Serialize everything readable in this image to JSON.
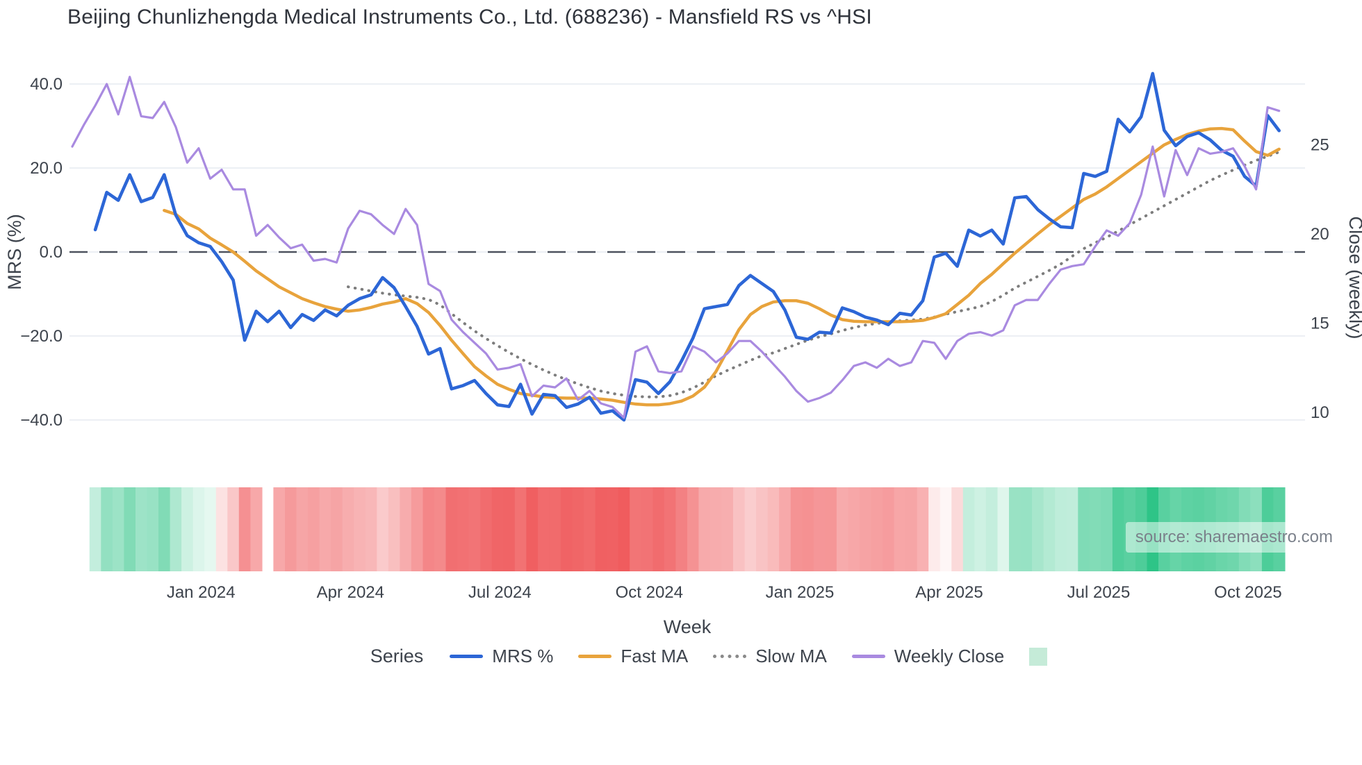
{
  "chart": {
    "title": "Beijing Chunlizhengda Medical Instruments Co., Ltd. (688236) - Mansfield RS vs ^HSI"
  },
  "watermark": "source: sharemaestro.com",
  "legend": {
    "title": "Series",
    "items": [
      {
        "id": "mrs",
        "label": "MRS %",
        "color": "#2c66d6",
        "style": "solid"
      },
      {
        "id": "fast-ma",
        "label": "Fast MA",
        "color": "#e8a33c",
        "style": "solid"
      },
      {
        "id": "slow-ma",
        "label": "Slow MA",
        "color": "#8a8a8a",
        "style": "dotted"
      },
      {
        "id": "weekly-close",
        "label": "Weekly Close",
        "color": "#a98ae0",
        "style": "solid"
      }
    ],
    "heatmap_swatch_color": "#c5ebd8"
  },
  "chart_data": {
    "type": "line",
    "title": "Beijing Chunlizhengda Medical Instruments Co., Ltd. (688236) - Mansfield RS vs ^HSI",
    "xlabel": "Week",
    "x_ticks": [
      {
        "label": "Jan 2024",
        "week": 11.2
      },
      {
        "label": "Apr 2024",
        "week": 24.2
      },
      {
        "label": "Jul 2024",
        "week": 37.2
      },
      {
        "label": "Oct 2024",
        "week": 50.2
      },
      {
        "label": "Jan 2025",
        "week": 63.3
      },
      {
        "label": "Apr 2025",
        "week": 76.3
      },
      {
        "label": "Jul 2025",
        "week": 89.3
      },
      {
        "label": "Oct 2025",
        "week": 102.3
      }
    ],
    "left_axis": {
      "label": "MRS (%)",
      "ticks": [
        {
          "label": "40.0",
          "value": 40
        },
        {
          "label": "20.0",
          "value": 20
        },
        {
          "label": "0.0",
          "value": 0
        },
        {
          "label": "−20.0",
          "value": -20
        },
        {
          "label": "−40.0",
          "value": -40
        }
      ]
    },
    "right_axis": {
      "label": "Close (weekly)",
      "ticks": [
        {
          "label": "25",
          "value": 25
        },
        {
          "label": "20",
          "value": 20
        },
        {
          "label": "15",
          "value": 15
        },
        {
          "label": "10",
          "value": 10
        }
      ]
    },
    "zero_line": {
      "axis": "left",
      "value": 0,
      "style": "dashed",
      "color": "#4d525e"
    },
    "weeks": 106,
    "series": [
      {
        "name": "MRS %",
        "axis": "left",
        "color": "#2c66d6",
        "width": 4.6,
        "dash": "none",
        "values": [
          null,
          null,
          5.3,
          14.2,
          12.3,
          18.4,
          12,
          13,
          18.4,
          8.8,
          3.9,
          2.2,
          1.3,
          -2.3,
          -6.7,
          -21,
          -14.1,
          -16.6,
          -14.1,
          -18,
          -14.9,
          -16.3,
          -13.8,
          -15.2,
          -12.7,
          -11.1,
          -10.2,
          -6.1,
          -8.5,
          -13,
          -17.7,
          -24.3,
          -23,
          -32.6,
          -31.8,
          -30.6,
          -33.7,
          -36.4,
          -36.8,
          -31.5,
          -38.6,
          -33.9,
          -34.2,
          -37,
          -36.2,
          -34.6,
          -38.4,
          -37.8,
          -40,
          -30.4,
          -31,
          -33.7,
          -30.9,
          -26,
          -20.5,
          -13.5,
          -13,
          -12.5,
          -8,
          -5.6,
          -7.5,
          -9.4,
          -13.8,
          -20.3,
          -20.8,
          -19.1,
          -19.3,
          -13.3,
          -14.2,
          -15.5,
          -16.2,
          -17.3,
          -14.6,
          -15,
          -11.6,
          -1.2,
          -0.3,
          -3.4,
          5.2,
          3.8,
          5.2,
          1.9,
          12.9,
          13.2,
          10.1,
          7.9,
          6,
          5.8,
          18.7,
          18,
          19.2,
          31.6,
          28.6,
          32.2,
          42.5,
          29,
          25.3,
          27.5,
          28.4,
          26.7,
          24.2,
          22.8,
          18,
          15.7,
          32.5,
          28.9
        ]
      },
      {
        "name": "Fast MA",
        "axis": "left",
        "color": "#e8a33c",
        "width": 4.4,
        "dash": "none",
        "values": [
          null,
          null,
          null,
          null,
          null,
          null,
          null,
          null,
          9.9,
          9,
          6.8,
          5.5,
          3.3,
          1.7,
          0,
          -2.2,
          -4.5,
          -6.4,
          -8.3,
          -9.7,
          -11.1,
          -12.1,
          -13,
          -13.6,
          -14.1,
          -13.8,
          -13.2,
          -12.4,
          -11.9,
          -11.1,
          -12.3,
          -14.4,
          -17.5,
          -21,
          -24.2,
          -27.3,
          -29.5,
          -31.5,
          -32.7,
          -33.7,
          -34.1,
          -34.5,
          -34.7,
          -34.8,
          -34.8,
          -34.8,
          -35,
          -35.3,
          -35.8,
          -36.2,
          -36.4,
          -36.4,
          -36.1,
          -35.5,
          -34.3,
          -32.2,
          -28.5,
          -23.5,
          -18.5,
          -14.9,
          -13,
          -11.9,
          -11.6,
          -11.6,
          -12.2,
          -13.5,
          -15,
          -16.1,
          -16.5,
          -16.6,
          -16.6,
          -16.6,
          -16.6,
          -16.5,
          -16.3,
          -15.6,
          -14.7,
          -12.5,
          -10.3,
          -7.5,
          -5.3,
          -2.8,
          -0.3,
          2,
          4.3,
          6.5,
          8.5,
          10.5,
          12.5,
          13.8,
          15.5,
          17.5,
          19.5,
          21.5,
          23.5,
          25.5,
          26.8,
          28,
          28.8,
          29.3,
          29.4,
          29.1,
          26.4,
          23.9,
          23,
          24.5
        ]
      },
      {
        "name": "Slow MA",
        "axis": "left",
        "color": "#7d7d7d",
        "width": 4,
        "dash": "dotted",
        "values": [
          null,
          null,
          null,
          null,
          null,
          null,
          null,
          null,
          null,
          null,
          null,
          null,
          null,
          null,
          null,
          null,
          null,
          null,
          null,
          null,
          null,
          null,
          null,
          null,
          -8.3,
          -8.8,
          -9.3,
          -9.8,
          -10.2,
          -10.5,
          -10.8,
          -11.3,
          -12.6,
          -14.7,
          -16.8,
          -18.8,
          -20.6,
          -22.3,
          -23.9,
          -25.4,
          -26.8,
          -28.1,
          -29.3,
          -30.4,
          -31.4,
          -32.3,
          -33.1,
          -33.7,
          -34.1,
          -34.4,
          -34.5,
          -34.5,
          -34.2,
          -33.5,
          -32.4,
          -31,
          -29.5,
          -28.2,
          -27,
          -25.8,
          -24.7,
          -24,
          -23,
          -22,
          -21,
          -20.2,
          -19.5,
          -18.7,
          -18,
          -17.4,
          -17,
          -16.7,
          -16.4,
          -16.2,
          -16,
          -15.5,
          -14.8,
          -14.2,
          -13.6,
          -13,
          -11.8,
          -10.3,
          -8.6,
          -7.2,
          -5.8,
          -4.4,
          -2.9,
          -1,
          0.8,
          2.2,
          3.5,
          5,
          6.5,
          8,
          9.5,
          11,
          12.5,
          14,
          15.5,
          17,
          18.3,
          19.5,
          20.7,
          21.8,
          22.8,
          23.8
        ]
      },
      {
        "name": "Weekly Close",
        "axis": "right",
        "color": "#a98ae0",
        "width": 3.2,
        "dash": "none",
        "values": [
          24.9,
          26.1,
          27.2,
          28.4,
          26.7,
          28.8,
          26.6,
          26.5,
          27.4,
          26,
          24,
          24.8,
          23.1,
          23.6,
          22.5,
          22.5,
          19.9,
          20.5,
          19.8,
          19.2,
          19.4,
          18.5,
          18.6,
          18.4,
          20.3,
          21.3,
          21.1,
          20.5,
          20,
          21.4,
          20.5,
          17.2,
          16.8,
          15.2,
          14.5,
          13.9,
          13.3,
          12.4,
          12.5,
          12.7,
          10.9,
          11.5,
          11.4,
          11.9,
          10.7,
          11.2,
          10.5,
          10.3,
          9.7,
          13.4,
          13.7,
          12.3,
          12.2,
          12.3,
          13.7,
          13.4,
          12.8,
          13.3,
          14,
          14,
          13.4,
          12.7,
          12,
          11.2,
          10.6,
          10.8,
          11.1,
          11.8,
          12.6,
          12.8,
          12.5,
          13,
          12.6,
          12.8,
          14,
          13.9,
          13,
          14,
          14.4,
          14.5,
          14.3,
          14.6,
          16,
          16.3,
          16.3,
          17.2,
          18,
          18.2,
          18.3,
          19.3,
          20.2,
          19.9,
          20.6,
          22.2,
          24.9,
          22.1,
          24.7,
          23.3,
          24.8,
          24.5,
          24.6,
          24.8,
          23.8,
          22.5,
          27.1,
          26.9
        ]
      }
    ],
    "heatmap": {
      "source_series": "MRS %",
      "first_week": 2,
      "gap_week": 17,
      "positive_color": "#2ec487",
      "negative_color": "#ef5658",
      "scale_max": 42.5
    }
  }
}
